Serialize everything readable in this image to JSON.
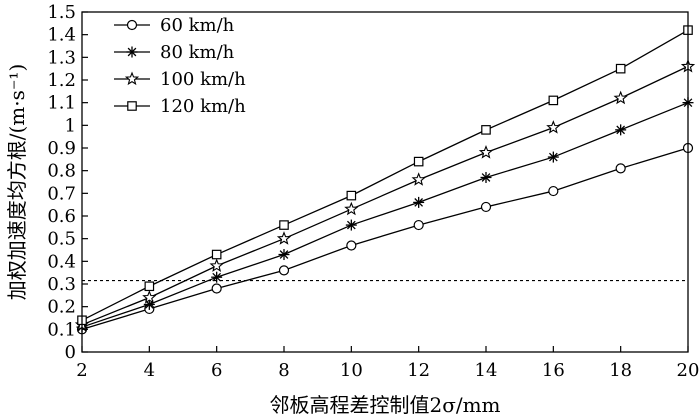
{
  "chart_data": {
    "type": "line",
    "title": "",
    "xlabel": "邻板高程差控制值2σ/mm",
    "ylabel": "加权加速度均方根/(m·s⁻¹)",
    "x": [
      2,
      4,
      6,
      8,
      10,
      12,
      14,
      16,
      18,
      20
    ],
    "xlim": [
      2,
      20
    ],
    "ylim": [
      0,
      1.5
    ],
    "x_ticks": [
      "2",
      "4",
      "6",
      "8",
      "10",
      "12",
      "14",
      "16",
      "18",
      "20"
    ],
    "y_ticks": [
      "0",
      "0.1",
      "0.2",
      "0.3",
      "0.4",
      "0.5",
      "0.6",
      "0.7",
      "0.8",
      "0.9",
      "1",
      "1.1",
      "1.2",
      "1.3",
      "1.4",
      "1.5"
    ],
    "grid": false,
    "legend_position": "top-left",
    "reference_line": {
      "y": 0.315,
      "style": "dashed"
    },
    "series": [
      {
        "name": "60 km/h",
        "marker": "circle",
        "values": [
          0.1,
          0.19,
          0.28,
          0.36,
          0.47,
          0.56,
          0.64,
          0.71,
          0.81,
          0.9
        ]
      },
      {
        "name": "80 km/h",
        "marker": "asterisk",
        "values": [
          0.11,
          0.21,
          0.33,
          0.43,
          0.56,
          0.66,
          0.77,
          0.86,
          0.98,
          1.1
        ]
      },
      {
        "name": "100 km/h",
        "marker": "star",
        "values": [
          0.12,
          0.24,
          0.38,
          0.5,
          0.63,
          0.76,
          0.88,
          0.99,
          1.12,
          1.26
        ]
      },
      {
        "name": "120 km/h",
        "marker": "square",
        "values": [
          0.14,
          0.29,
          0.43,
          0.56,
          0.69,
          0.84,
          0.98,
          1.11,
          1.25,
          1.42
        ]
      }
    ],
    "colors": {
      "line": "#000000",
      "background": "#ffffff"
    }
  }
}
